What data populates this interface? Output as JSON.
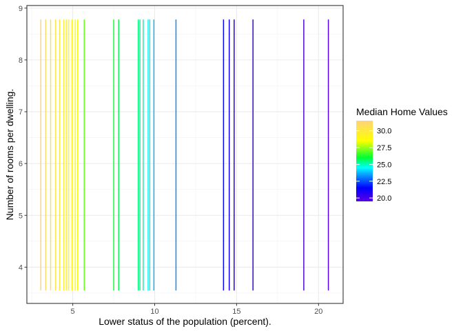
{
  "chart_data": {
    "type": "segment",
    "xlabel": "Lower status of the population (percent).",
    "ylabel": "Number of rooms per dwelling.",
    "xlim": [
      2.2,
      21.5
    ],
    "ylim": [
      3.3,
      9.05
    ],
    "x_ticks": [
      5,
      10,
      15,
      20
    ],
    "y_ticks": [
      4,
      5,
      6,
      7,
      8,
      9
    ],
    "grid": true,
    "theme": "bw",
    "segment_y_range": [
      3.55,
      8.78
    ],
    "segments": [
      {
        "x": 3.05,
        "value": 31.3
      },
      {
        "x": 3.35,
        "value": 31.0
      },
      {
        "x": 3.65,
        "value": 30.6
      },
      {
        "x": 3.95,
        "value": 30.3
      },
      {
        "x": 4.2,
        "value": 30.0
      },
      {
        "x": 4.45,
        "value": 29.7
      },
      {
        "x": 4.6,
        "value": 29.5
      },
      {
        "x": 4.75,
        "value": 29.3
      },
      {
        "x": 4.95,
        "value": 29.0
      },
      {
        "x": 5.15,
        "value": 28.7
      },
      {
        "x": 5.3,
        "value": 28.4
      },
      {
        "x": 5.7,
        "value": 27.0
      },
      {
        "x": 7.5,
        "value": 26.2
      },
      {
        "x": 7.8,
        "value": 25.8
      },
      {
        "x": 9.0,
        "value": 25.5
      },
      {
        "x": 9.1,
        "value": 25.3
      },
      {
        "x": 9.3,
        "value": 25.1
      },
      {
        "x": 9.6,
        "value": 24.6
      },
      {
        "x": 9.7,
        "value": 24.3
      },
      {
        "x": 9.95,
        "value": 23.8
      },
      {
        "x": 11.3,
        "value": 23.2
      },
      {
        "x": 14.2,
        "value": 21.5
      },
      {
        "x": 14.55,
        "value": 21.1
      },
      {
        "x": 14.85,
        "value": 20.8
      },
      {
        "x": 16.0,
        "value": 20.4
      },
      {
        "x": 19.1,
        "value": 19.8
      },
      {
        "x": 20.6,
        "value": 19.6
      }
    ],
    "legend": {
      "title": "Median Home Values",
      "placement": "right",
      "range": [
        19.5,
        31.5
      ],
      "breaks": [
        20.0,
        22.5,
        25.0,
        27.5,
        30.0
      ],
      "break_labels": [
        "20.0",
        "22.5",
        "25.0",
        "27.5",
        "30.0"
      ],
      "gradient_stops": [
        {
          "value": 19.5,
          "color": "#5b00e6"
        },
        {
          "value": 21.5,
          "color": "#0000ff"
        },
        {
          "value": 23.5,
          "color": "#0aa0ff"
        },
        {
          "value": 24.5,
          "color": "#00ffff"
        },
        {
          "value": 26.0,
          "color": "#00ff33"
        },
        {
          "value": 28.5,
          "color": "#ffff00"
        },
        {
          "value": 31.5,
          "color": "#ffd27a"
        }
      ]
    }
  }
}
